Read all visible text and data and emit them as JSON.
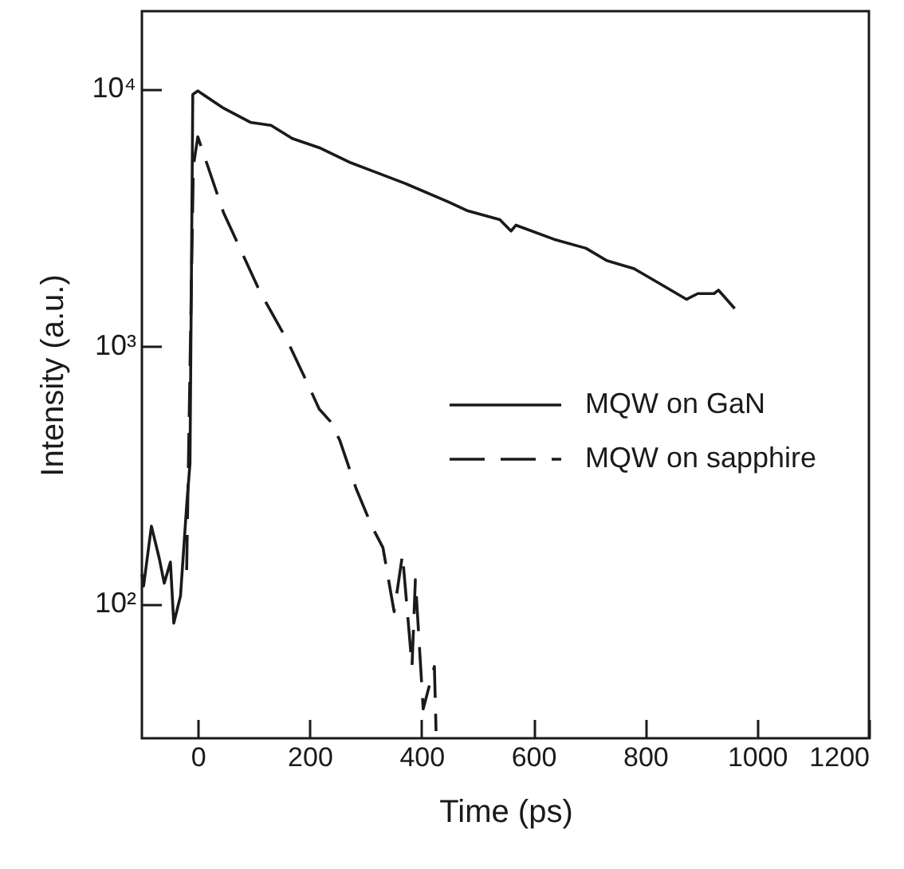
{
  "chart_data": {
    "type": "line",
    "xlabel": "Time (ps)",
    "ylabel": "Intensity (a.u.)",
    "log": "y",
    "xlim": [
      -100,
      1200
    ],
    "xticks": [
      0,
      200,
      400,
      600,
      800,
      1000,
      1200
    ],
    "ylim": [
      30,
      20000
    ],
    "yticks": [
      {
        "value": 100,
        "label": "10²"
      },
      {
        "value": 1000,
        "label": "10³"
      },
      {
        "value": 10000,
        "label": "10⁴"
      }
    ],
    "legend": "right",
    "grid": false,
    "series": [
      {
        "name": "MQW on GaN",
        "color": "#1a1a1a",
        "line_style": "solid",
        "x": [
          -100,
          -97,
          -83,
          -69,
          -60,
          -49,
          -43,
          -31,
          -20,
          -14,
          -9,
          0,
          46,
          94,
          131,
          169,
          217,
          274,
          311,
          369,
          446,
          483,
          540,
          560,
          569,
          637,
          694,
          731,
          780,
          826,
          874,
          894,
          923,
          931,
          960
        ],
        "values": [
          130,
          117,
          200,
          150,
          120,
          145,
          84,
          107,
          240,
          350,
          9500,
          9800,
          8400,
          7400,
          7200,
          6400,
          5900,
          5150,
          4800,
          4300,
          3650,
          3350,
          3100,
          2800,
          2950,
          2600,
          2400,
          2150,
          2000,
          1750,
          1520,
          1600,
          1600,
          1650,
          1400
        ]
      },
      {
        "name": "MQW on sapphire",
        "color": "#1a1a1a",
        "line_style": "dashed",
        "x": [
          -20,
          -8,
          0,
          46,
          111,
          160,
          197,
          217,
          237,
          254,
          283,
          311,
          331,
          351,
          366,
          383,
          389,
          403,
          423,
          426
        ],
        "values": [
          135,
          5000,
          6500,
          3300,
          1630,
          1050,
          710,
          570,
          510,
          430,
          280,
          200,
          165,
          93,
          155,
          57,
          124,
          39,
          57,
          32
        ]
      }
    ]
  }
}
